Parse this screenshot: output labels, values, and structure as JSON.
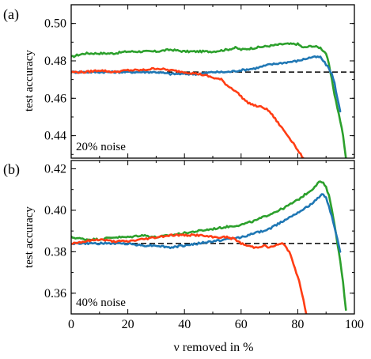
{
  "chart_data": [
    {
      "type": "line",
      "panel_label": "(a)",
      "annotation": "20% noise",
      "ylabel": "test accuracy",
      "xlim": [
        0,
        100
      ],
      "ylim": [
        0.428,
        0.51
      ],
      "yticks": [
        0.44,
        0.46,
        0.48,
        0.5
      ],
      "ytick_labels": [
        "0.44",
        "0.46",
        "0.48",
        "0.50"
      ],
      "baseline": 0.474,
      "series": [
        {
          "color": "#2ca02c",
          "x": [
            0,
            2,
            5,
            10,
            15,
            20,
            25,
            30,
            35,
            40,
            45,
            50,
            55,
            58,
            60,
            65,
            70,
            75,
            80,
            82,
            85,
            88,
            90,
            91,
            92,
            93,
            94,
            95,
            96,
            97
          ],
          "y": [
            0.482,
            0.483,
            0.484,
            0.484,
            0.484,
            0.485,
            0.485,
            0.485,
            0.486,
            0.485,
            0.485,
            0.485,
            0.486,
            0.487,
            0.486,
            0.487,
            0.488,
            0.489,
            0.489,
            0.487,
            0.488,
            0.487,
            0.484,
            0.478,
            0.47,
            0.462,
            0.455,
            0.448,
            0.44,
            0.428
          ]
        },
        {
          "color": "#1f77b4",
          "x": [
            0,
            5,
            10,
            15,
            20,
            25,
            30,
            35,
            40,
            45,
            50,
            55,
            60,
            65,
            70,
            75,
            80,
            85,
            88,
            89,
            90,
            91,
            92,
            93,
            94,
            95
          ],
          "y": [
            0.474,
            0.474,
            0.474,
            0.474,
            0.474,
            0.474,
            0.474,
            0.473,
            0.473,
            0.473,
            0.474,
            0.474,
            0.475,
            0.476,
            0.478,
            0.479,
            0.48,
            0.482,
            0.482,
            0.48,
            0.478,
            0.476,
            0.473,
            0.468,
            0.46,
            0.453
          ]
        },
        {
          "color": "#ff3d14",
          "x": [
            0,
            5,
            10,
            15,
            20,
            25,
            30,
            35,
            40,
            45,
            48,
            50,
            53,
            55,
            58,
            60,
            62,
            65,
            68,
            70,
            72,
            74,
            76,
            78,
            79,
            80,
            81,
            82
          ],
          "y": [
            0.474,
            0.474,
            0.475,
            0.474,
            0.475,
            0.475,
            0.476,
            0.475,
            0.474,
            0.473,
            0.472,
            0.471,
            0.47,
            0.467,
            0.464,
            0.461,
            0.458,
            0.456,
            0.455,
            0.453,
            0.449,
            0.445,
            0.441,
            0.437,
            0.435,
            0.432,
            0.43,
            0.428
          ]
        }
      ]
    },
    {
      "type": "line",
      "panel_label": "(b)",
      "annotation": "40% noise",
      "ylabel": "test accuracy",
      "xlabel": "ν removed in %",
      "xlim": [
        0,
        100
      ],
      "ylim": [
        0.35,
        0.424
      ],
      "xticks": [
        0,
        20,
        40,
        60,
        80,
        100
      ],
      "xtick_labels": [
        "0",
        "20",
        "40",
        "60",
        "80",
        "100"
      ],
      "yticks": [
        0.36,
        0.38,
        0.4,
        0.42
      ],
      "ytick_labels": [
        "0.36",
        "0.38",
        "0.40",
        "0.42"
      ],
      "baseline": 0.384,
      "series": [
        {
          "color": "#2ca02c",
          "x": [
            0,
            5,
            10,
            15,
            20,
            25,
            30,
            35,
            40,
            45,
            50,
            55,
            60,
            65,
            70,
            75,
            80,
            85,
            87,
            88,
            89,
            90,
            91,
            92,
            93,
            94,
            95,
            96,
            97
          ],
          "y": [
            0.387,
            0.386,
            0.386,
            0.387,
            0.387,
            0.388,
            0.387,
            0.388,
            0.389,
            0.39,
            0.391,
            0.392,
            0.393,
            0.395,
            0.398,
            0.401,
            0.405,
            0.41,
            0.413,
            0.414,
            0.413,
            0.411,
            0.407,
            0.401,
            0.393,
            0.384,
            0.376,
            0.365,
            0.352
          ]
        },
        {
          "color": "#1f77b4",
          "x": [
            0,
            5,
            10,
            15,
            20,
            25,
            30,
            35,
            40,
            45,
            50,
            55,
            60,
            65,
            70,
            75,
            80,
            85,
            88,
            89,
            90,
            91,
            92,
            93,
            94,
            95
          ],
          "y": [
            0.384,
            0.384,
            0.384,
            0.384,
            0.384,
            0.383,
            0.383,
            0.382,
            0.383,
            0.384,
            0.385,
            0.386,
            0.387,
            0.389,
            0.391,
            0.395,
            0.399,
            0.403,
            0.407,
            0.408,
            0.406,
            0.402,
            0.397,
            0.392,
            0.386,
            0.38
          ]
        },
        {
          "color": "#ff3d14",
          "x": [
            0,
            5,
            10,
            15,
            20,
            25,
            30,
            35,
            40,
            45,
            50,
            55,
            58,
            60,
            62,
            65,
            68,
            70,
            72,
            75,
            77,
            78,
            79,
            80,
            81,
            82,
            83
          ],
          "y": [
            0.384,
            0.385,
            0.386,
            0.385,
            0.385,
            0.386,
            0.387,
            0.388,
            0.388,
            0.388,
            0.387,
            0.387,
            0.386,
            0.384,
            0.383,
            0.382,
            0.383,
            0.382,
            0.383,
            0.384,
            0.38,
            0.376,
            0.372,
            0.368,
            0.363,
            0.357,
            0.35
          ]
        }
      ]
    }
  ]
}
